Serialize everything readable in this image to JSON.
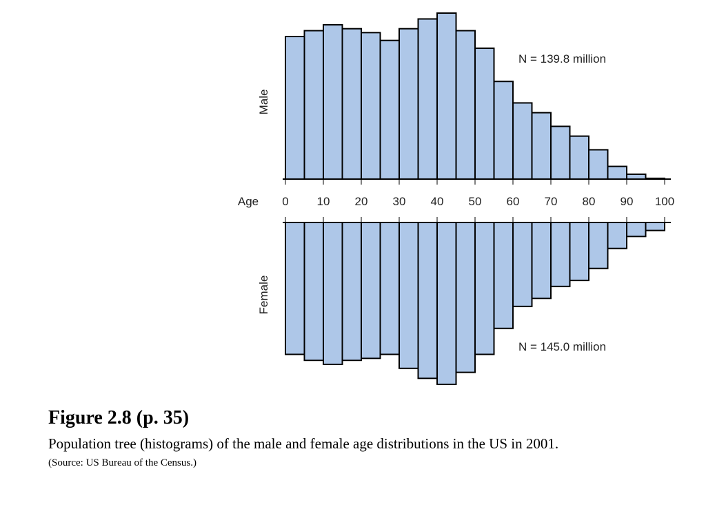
{
  "chart_data": {
    "type": "bar",
    "bin_width": 5,
    "x_ticks": [
      0,
      10,
      20,
      30,
      40,
      50,
      60,
      70,
      80,
      90,
      100
    ],
    "x_tick_labels": [
      "0",
      "10",
      "20",
      "30",
      "40",
      "50",
      "60",
      "70",
      "80",
      "90",
      "100"
    ],
    "xlabel": "Age",
    "xlim": [
      0,
      100
    ],
    "unit": "relative frequency (unlabeled)",
    "colors": {
      "bar_fill": "#aec7e8",
      "bar_stroke": "#000000"
    },
    "series": [
      {
        "name": "Male",
        "annotation": "N = 139.8 million",
        "bin_starts": [
          0,
          5,
          10,
          15,
          20,
          25,
          30,
          35,
          40,
          45,
          50,
          55,
          60,
          65,
          70,
          75,
          80,
          85,
          90,
          95
        ],
        "values": [
          7.3,
          7.6,
          7.9,
          7.7,
          7.5,
          7.1,
          7.7,
          8.2,
          8.5,
          7.6,
          6.7,
          5.0,
          3.9,
          3.4,
          2.7,
          2.2,
          1.5,
          0.65,
          0.25,
          0.04
        ]
      },
      {
        "name": "Female",
        "annotation": "N = 145.0 million",
        "bin_starts": [
          0,
          5,
          10,
          15,
          20,
          25,
          30,
          35,
          40,
          45,
          50,
          55,
          60,
          65,
          70,
          75,
          80,
          85,
          90,
          95
        ],
        "values": [
          6.6,
          6.9,
          7.1,
          6.9,
          6.8,
          6.6,
          7.3,
          7.8,
          8.1,
          7.5,
          6.6,
          5.3,
          4.2,
          3.8,
          3.2,
          2.9,
          2.3,
          1.3,
          0.7,
          0.4
        ]
      }
    ]
  },
  "caption": {
    "title": "Figure 2.8  (p. 35)",
    "description": "Population tree (histograms) of the male and female age distributions in the US in 2001.",
    "source": "(Source: US Bureau of the Census.)"
  }
}
